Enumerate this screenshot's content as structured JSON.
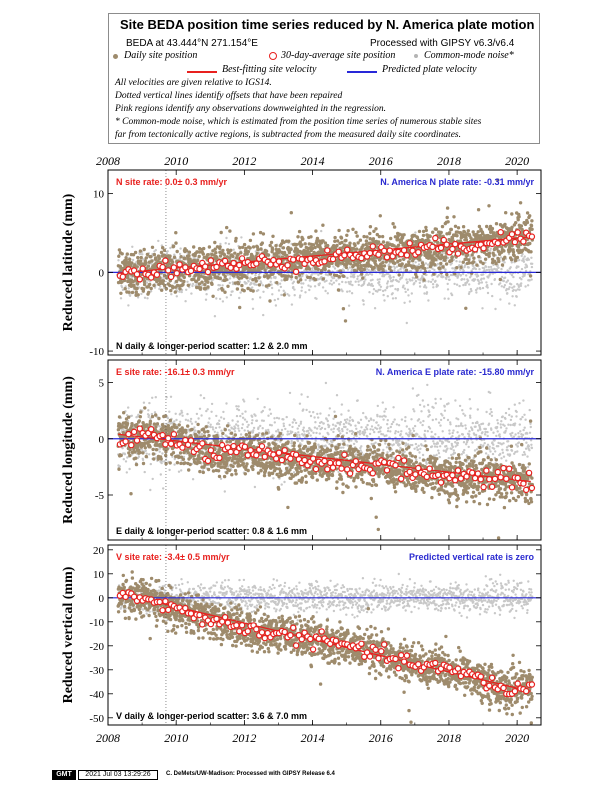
{
  "title": "Site BEDA position time series reduced by N. America plate motion",
  "legend": {
    "site_coords": "BEDA at 43.444°N 271.154°E",
    "processing": "Processed with GIPSY v6.3/v6.4",
    "daily_position": "Daily site position",
    "avg_position": "30-day-average site position",
    "common_mode": "Common-mode noise*",
    "best_fit": "Best-fitting site velocity",
    "predicted": "Predicted plate velocity",
    "notes": [
      "All velocities are given relative to IGS14.",
      "Dotted vertical lines identify offsets that have been repaired",
      "Pink regions identify any observations downweighted in the regression.",
      "* Common-mode noise, which is estimated from the position time series of numerous stable sites",
      "far from tectonically active regions, is subtracted from the measured daily site coordinates."
    ]
  },
  "colors": {
    "daily": "#9e8b6c",
    "common_mode": "#c8c8c8",
    "fit": "#e8201e",
    "predicted": "#2828d8",
    "average_marker": "#e8201e",
    "site_rate_text": "#e8201e",
    "plate_rate_text": "#2a2ad0"
  },
  "footer": {
    "logo": "GMT",
    "timestamp": "2021 Jul 03 13:29:26",
    "credit": "C. DeMets/UW-Madison: Processed with GIPSY Release 6.4"
  },
  "chart_data": [
    {
      "type": "scatter",
      "component": "N",
      "ylabel": "Reduced latitude (mm)",
      "xlim": [
        2008,
        2020.7
      ],
      "ylim": [
        -10.5,
        13
      ],
      "yticks": [
        -10,
        0,
        10
      ],
      "xticks": [
        2008,
        2010,
        2012,
        2014,
        2016,
        2018,
        2020
      ],
      "site_rate": "N site rate:   0.0± 0.3 mm/yr",
      "plate_rate": "N. America N plate rate:  -0.31 mm/yr",
      "scatter": "N daily & longer-period scatter:   1.2 &   2.0 mm",
      "offset_year": 2009.7,
      "series": [
        {
          "name": "Best-fitting site velocity",
          "x": [
            2008.3,
            2020.4
          ],
          "y": [
            -0.1,
            4.5
          ]
        },
        {
          "name": "Predicted plate velocity",
          "x": [
            2008,
            2020.7
          ],
          "y": [
            0,
            0
          ]
        }
      ],
      "avg_anchor": {
        "x": [
          2008.3,
          2010,
          2012,
          2014,
          2016,
          2018,
          2019.5,
          2020.4
        ],
        "y": [
          -0.2,
          0.5,
          1.0,
          1.8,
          2.5,
          3.2,
          4.0,
          4.8
        ]
      },
      "noise": {
        "daily_sd": 1.3,
        "cm_sd": 1.6,
        "avg_sd": 0.5
      }
    },
    {
      "type": "scatter",
      "component": "E",
      "ylabel": "Reduced longitude (mm)",
      "xlim": [
        2008,
        2020.7
      ],
      "ylim": [
        -9,
        7
      ],
      "yticks": [
        -5,
        0,
        5
      ],
      "xticks": [
        2008,
        2010,
        2012,
        2014,
        2016,
        2018,
        2020
      ],
      "site_rate": "E site rate:  -16.1± 0.3 mm/yr",
      "plate_rate": "N. America E plate rate:  -15.80 mm/yr",
      "scatter": "E daily & longer-period scatter:   0.8 &   1.6 mm",
      "offset_year": 2009.7,
      "series": [
        {
          "name": "Best-fitting site velocity",
          "x": [
            2008.3,
            2020.4
          ],
          "y": [
            0.4,
            -3.8
          ]
        },
        {
          "name": "Predicted plate velocity",
          "x": [
            2008,
            2020.7
          ],
          "y": [
            0,
            0
          ]
        }
      ],
      "avg_anchor": {
        "x": [
          2008.3,
          2009,
          2010,
          2011,
          2012,
          2013,
          2014,
          2015,
          2016,
          2017,
          2018,
          2019,
          2020.4
        ],
        "y": [
          0.0,
          0.3,
          -0.2,
          -1.3,
          -1.2,
          -1.7,
          -2.0,
          -2.4,
          -2.3,
          -3.0,
          -3.3,
          -3.4,
          -3.8
        ]
      },
      "noise": {
        "daily_sd": 0.9,
        "cm_sd": 1.5,
        "avg_sd": 0.4
      }
    },
    {
      "type": "scatter",
      "component": "V",
      "ylabel": "Reduced vertical (mm)",
      "xlim": [
        2008,
        2020.7
      ],
      "ylim": [
        -53,
        22
      ],
      "yticks": [
        -50,
        -40,
        -30,
        -20,
        -10,
        0,
        10,
        20
      ],
      "xticks": [
        2008,
        2010,
        2012,
        2014,
        2016,
        2018,
        2020
      ],
      "site_rate": "V site rate:  -3.4± 0.5 mm/yr",
      "plate_rate": "Predicted vertical rate is zero",
      "scatter": "V daily & longer-period scatter:   3.6 &   7.0 mm",
      "offset_year": 2009.7,
      "series": [
        {
          "name": "Best-fitting site velocity",
          "x": [
            2008.3,
            2020.4
          ],
          "y": [
            2.0,
            -39.0
          ]
        },
        {
          "name": "Predicted plate velocity",
          "x": [
            2008,
            2020.7
          ],
          "y": [
            0,
            0
          ]
        }
      ],
      "avg_anchor": {
        "x": [
          2008.3,
          2009,
          2010,
          2011,
          2012,
          2013,
          2014,
          2015,
          2016,
          2017,
          2018,
          2019,
          2019.7,
          2020.4
        ],
        "y": [
          1.0,
          0.0,
          -5.0,
          -9.0,
          -13.0,
          -15.0,
          -17.0,
          -20.0,
          -24.0,
          -28.0,
          -30.0,
          -34.0,
          -39.0,
          -37.0
        ]
      },
      "noise": {
        "daily_sd": 3.8,
        "cm_sd": 3.0,
        "avg_sd": 1.5
      }
    }
  ]
}
